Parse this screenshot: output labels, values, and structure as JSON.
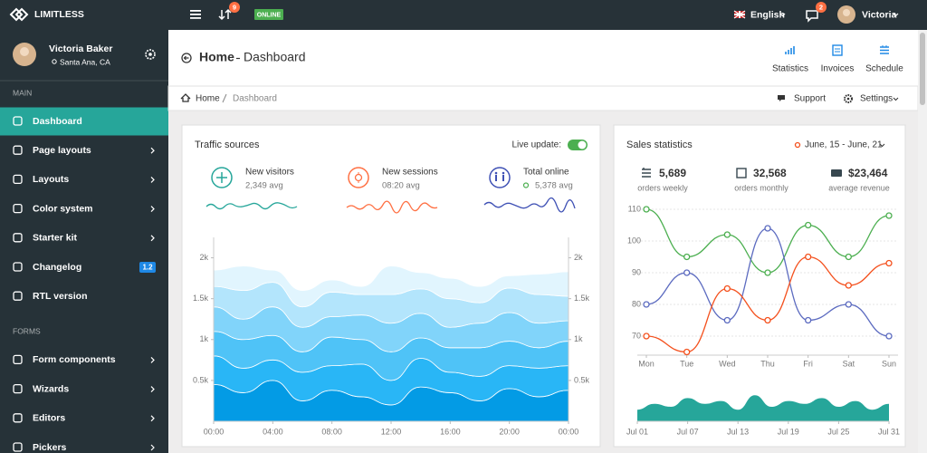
{
  "topbar": {
    "brand": "LIMITLESS",
    "updates_badge": "9",
    "status": "ONLINE",
    "language": "English",
    "notifications_badge": "2",
    "user": "Victoria"
  },
  "sidebar": {
    "user_name": "Victoria Baker",
    "user_location": "Santa Ana, CA",
    "sections": [
      {
        "title": "MAIN",
        "items": [
          {
            "label": "Dashboard"
          },
          {
            "label": "Page layouts"
          },
          {
            "label": "Layouts"
          },
          {
            "label": "Color system"
          },
          {
            "label": "Starter kit"
          },
          {
            "label": "Changelog",
            "badge": "1.2"
          },
          {
            "label": "RTL version"
          }
        ]
      },
      {
        "title": "FORMS",
        "items": [
          {
            "label": "Form components"
          },
          {
            "label": "Wizards"
          },
          {
            "label": "Editors"
          },
          {
            "label": "Pickers"
          }
        ]
      }
    ]
  },
  "header": {
    "title": "Home",
    "subtitle": "Dashboard",
    "actions": [
      "Statistics",
      "Invoices",
      "Schedule"
    ]
  },
  "breadcrumb": {
    "items": [
      "Home",
      "Dashboard"
    ],
    "links": [
      "Support",
      "Settings"
    ]
  },
  "traffic": {
    "title": "Traffic sources",
    "live_update": "Live update:",
    "stats": [
      {
        "label": "New visitors",
        "value": "2,349 avg"
      },
      {
        "label": "New sessions",
        "value": "08:20 avg"
      },
      {
        "label": "Total online",
        "value": "5,378 avg"
      }
    ],
    "chart": {
      "type": "area",
      "stacked": true,
      "categories": [
        "00:00",
        null,
        "04:00",
        null,
        "08:00",
        null,
        "12:00",
        null,
        "16:00",
        null,
        "20:00",
        null,
        "00:00"
      ],
      "ylim": [
        0,
        2250
      ],
      "yticks": [
        {
          "value": 500,
          "label": "0.5k"
        },
        {
          "value": 1000,
          "label": "1k"
        },
        {
          "value": 1500,
          "label": "1.5k"
        },
        {
          "value": 2000,
          "label": "2k"
        }
      ],
      "series": [
        {
          "color": "#039be5",
          "values": [
            450,
            350,
            500,
            250,
            380,
            300,
            200,
            420,
            350,
            250,
            400,
            300,
            380
          ]
        },
        {
          "color": "#29b6f6",
          "values": [
            350,
            300,
            250,
            350,
            300,
            400,
            300,
            350,
            250,
            300,
            280,
            350,
            300
          ]
        },
        {
          "color": "#4fc3f7",
          "values": [
            300,
            350,
            300,
            250,
            350,
            300,
            350,
            250,
            300,
            350,
            300,
            250,
            300
          ]
        },
        {
          "color": "#81d4fa",
          "values": [
            300,
            250,
            350,
            300,
            250,
            300,
            350,
            300,
            250,
            300,
            350,
            300,
            250
          ]
        },
        {
          "color": "#b3e5fc",
          "values": [
            250,
            350,
            300,
            250,
            300,
            250,
            350,
            300,
            350,
            250,
            300,
            350,
            300
          ]
        },
        {
          "color": "#e1f5fe",
          "values": [
            200,
            300,
            150,
            200,
            150,
            100,
            350,
            200,
            250,
            200,
            150,
            250,
            300
          ]
        }
      ]
    }
  },
  "sales": {
    "title": "Sales statistics",
    "range": "June, 15 - June, 21",
    "stats": [
      {
        "value": "5,689",
        "label": "orders weekly"
      },
      {
        "value": "32,568",
        "label": "orders monthly"
      },
      {
        "value": "$23,464",
        "label": "average revenue"
      }
    ],
    "chart": {
      "type": "line",
      "categories": [
        "Mon",
        "Tue",
        "Wed",
        "Thu",
        "Fri",
        "Sat",
        "Sun"
      ],
      "ylim": [
        64,
        112
      ],
      "yticks": [
        70,
        80,
        90,
        100,
        110
      ],
      "grid": true,
      "series": [
        {
          "color": "#4caf50",
          "values": [
            110,
            95,
            102,
            90,
            105,
            95,
            108
          ]
        },
        {
          "color": "#5c6bc0",
          "values": [
            80,
            90,
            75,
            104,
            75,
            80,
            70
          ]
        },
        {
          "color": "#f4511e",
          "values": [
            70,
            65,
            85,
            75,
            95,
            86,
            93
          ]
        }
      ]
    },
    "volume": {
      "type": "area",
      "color": "#26a69a",
      "x": [
        1,
        3,
        5,
        7,
        9,
        11,
        13,
        15,
        17,
        19,
        21,
        23,
        25,
        27,
        29,
        31
      ],
      "values": [
        4,
        6,
        5,
        8,
        6,
        7,
        4,
        9,
        5,
        7,
        6,
        8,
        5,
        7,
        4,
        6
      ],
      "xlim": [
        1,
        31
      ],
      "ylim": [
        0,
        10
      ],
      "xticks": [
        {
          "value": 1,
          "label": "Jul 01"
        },
        {
          "value": 7,
          "label": "Jul 07"
        },
        {
          "value": 13,
          "label": "Jul 13"
        },
        {
          "value": 19,
          "label": "Jul 19"
        },
        {
          "value": 25,
          "label": "Jul 25"
        },
        {
          "value": 31,
          "label": "Jul 31"
        }
      ]
    }
  }
}
